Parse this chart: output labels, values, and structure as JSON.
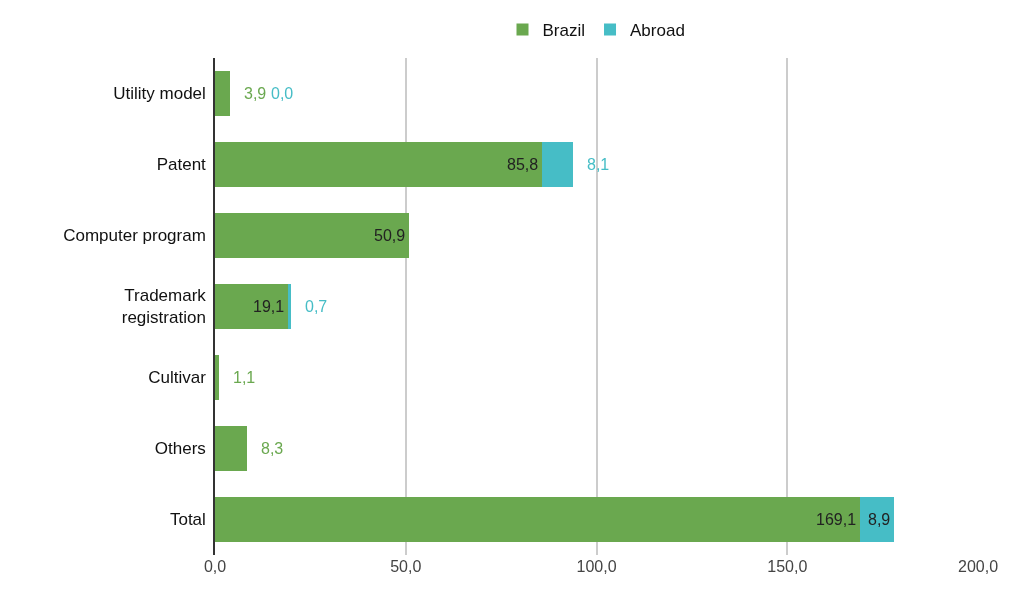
{
  "chart_data": {
    "type": "bar",
    "orientation": "horizontal",
    "stacked": true,
    "categories": [
      "Utility model",
      "Patent",
      "Computer program",
      "Trademark\nregistration",
      "Cultivar",
      "Others",
      "Total"
    ],
    "series": [
      {
        "name": "Brazil",
        "color": "#6aa84f",
        "values": [
          3.9,
          85.8,
          50.9,
          19.1,
          1.1,
          8.3,
          169.1
        ],
        "value_labels": [
          "3,9",
          "85,8",
          "50,9",
          "19,1",
          "1,1",
          "8,3",
          "169,1"
        ]
      },
      {
        "name": "Abroad",
        "color": "#46bdc6",
        "values": [
          0.0,
          8.1,
          null,
          0.7,
          null,
          null,
          8.9
        ],
        "value_labels": [
          "0,0",
          "8,1",
          null,
          "0,7",
          null,
          null,
          "8,9"
        ]
      }
    ],
    "xlim": [
      0,
      200
    ],
    "xticks": [
      {
        "value": 0,
        "label": "0,0"
      },
      {
        "value": 50,
        "label": "50,0"
      },
      {
        "value": 100,
        "label": "100,0"
      },
      {
        "value": 150,
        "label": "150,0"
      },
      {
        "value": 200,
        "label": "200,0"
      }
    ],
    "grid": "x",
    "legend": "top"
  }
}
